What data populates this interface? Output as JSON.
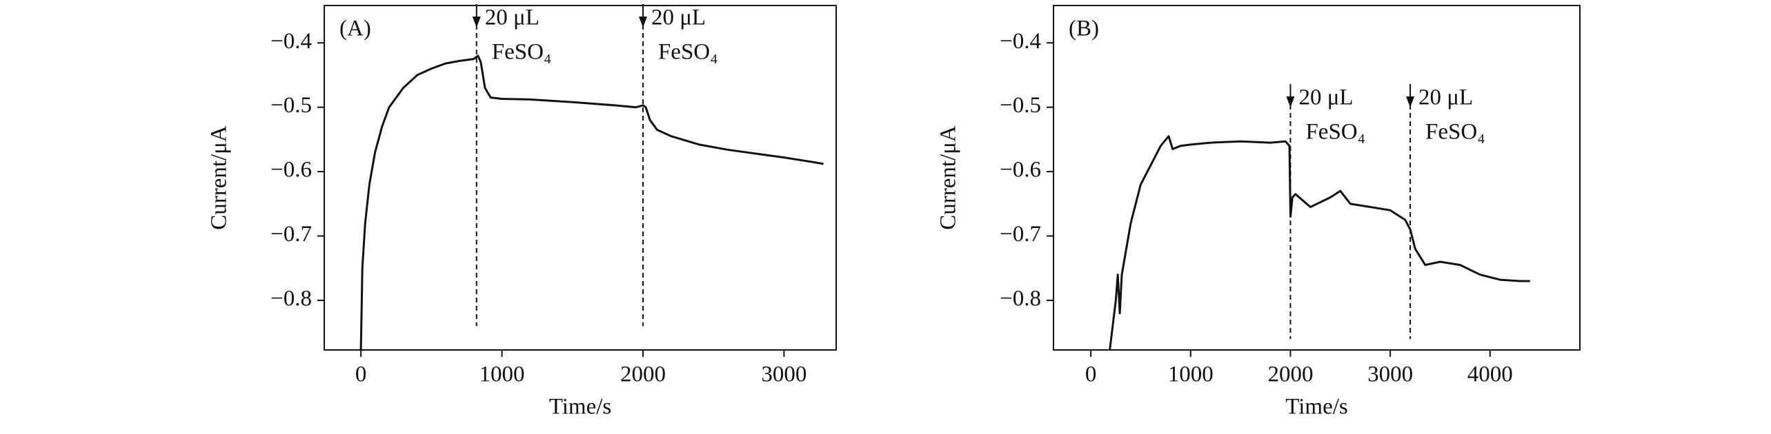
{
  "chart_data": [
    {
      "type": "line",
      "panel_label": "(A)",
      "x_label": "Time/s",
      "y_label": "Current/μA",
      "xlim": [
        -260,
        3370
      ],
      "ylim": [
        -0.877,
        -0.342
      ],
      "xticks": [
        0,
        1000,
        2000,
        3000
      ],
      "yticks": [
        {
          "value": -0.4,
          "label": "−0.4"
        },
        {
          "value": -0.5,
          "label": "−0.5"
        },
        {
          "value": -0.6,
          "label": "−0.6"
        },
        {
          "value": -0.7,
          "label": "−0.7"
        },
        {
          "value": -0.8,
          "label": "−0.8"
        }
      ],
      "series": [
        {
          "color": "#111111",
          "x": [
            0,
            10,
            30,
            60,
            100,
            150,
            200,
            300,
            400,
            500,
            600,
            700,
            800,
            830,
            850,
            880,
            920,
            1000,
            1200,
            1500,
            1800,
            1950,
            2000,
            2020,
            2050,
            2100,
            2200,
            2400,
            2600,
            2800,
            3000,
            3200,
            3280
          ],
          "values": [
            -0.877,
            -0.75,
            -0.68,
            -0.62,
            -0.57,
            -0.53,
            -0.5,
            -0.47,
            -0.45,
            -0.44,
            -0.432,
            -0.428,
            -0.425,
            -0.42,
            -0.43,
            -0.47,
            -0.485,
            -0.487,
            -0.488,
            -0.492,
            -0.497,
            -0.5,
            -0.497,
            -0.5,
            -0.52,
            -0.535,
            -0.545,
            -0.558,
            -0.566,
            -0.572,
            -0.578,
            -0.585,
            -0.588
          ]
        }
      ],
      "annotations": [
        {
          "x": 820,
          "text": [
            "20 μL",
            "FeSO₄"
          ]
        },
        {
          "x": 2000,
          "text": [
            "20 μL",
            "FeSO₄"
          ]
        }
      ]
    },
    {
      "type": "line",
      "panel_label": "(B)",
      "x_label": "Time/s",
      "y_label": "Current/μA",
      "xlim": [
        -374,
        4900
      ],
      "ylim": [
        -0.877,
        -0.342
      ],
      "xticks": [
        0,
        1000,
        2000,
        3000,
        4000
      ],
      "yticks": [
        {
          "value": -0.4,
          "label": "−0.4"
        },
        {
          "value": -0.5,
          "label": "−0.5"
        },
        {
          "value": -0.6,
          "label": "−0.6"
        },
        {
          "value": -0.7,
          "label": "−0.7"
        },
        {
          "value": -0.8,
          "label": "−0.8"
        }
      ],
      "series": [
        {
          "color": "#111111",
          "x": [
            190,
            250,
            270,
            290,
            310,
            400,
            500,
            600,
            700,
            780,
            820,
            900,
            1000,
            1200,
            1500,
            1800,
            1950,
            1990,
            2000,
            2020,
            2050,
            2200,
            2400,
            2500,
            2600,
            2800,
            3000,
            3150,
            3200,
            3250,
            3350,
            3500,
            3700,
            3900,
            4100,
            4300,
            4400
          ],
          "values": [
            -0.877,
            -0.8,
            -0.76,
            -0.82,
            -0.76,
            -0.68,
            -0.62,
            -0.59,
            -0.56,
            -0.545,
            -0.565,
            -0.56,
            -0.558,
            -0.555,
            -0.553,
            -0.555,
            -0.553,
            -0.56,
            -0.67,
            -0.64,
            -0.635,
            -0.655,
            -0.64,
            -0.63,
            -0.65,
            -0.655,
            -0.66,
            -0.675,
            -0.69,
            -0.72,
            -0.745,
            -0.74,
            -0.745,
            -0.76,
            -0.768,
            -0.77,
            -0.77
          ]
        }
      ],
      "annotations": [
        {
          "x": 2000,
          "text": [
            "20 μL",
            "FeSO₄"
          ]
        },
        {
          "x": 3200,
          "text": [
            "20 μL",
            "FeSO₄"
          ]
        }
      ]
    }
  ]
}
